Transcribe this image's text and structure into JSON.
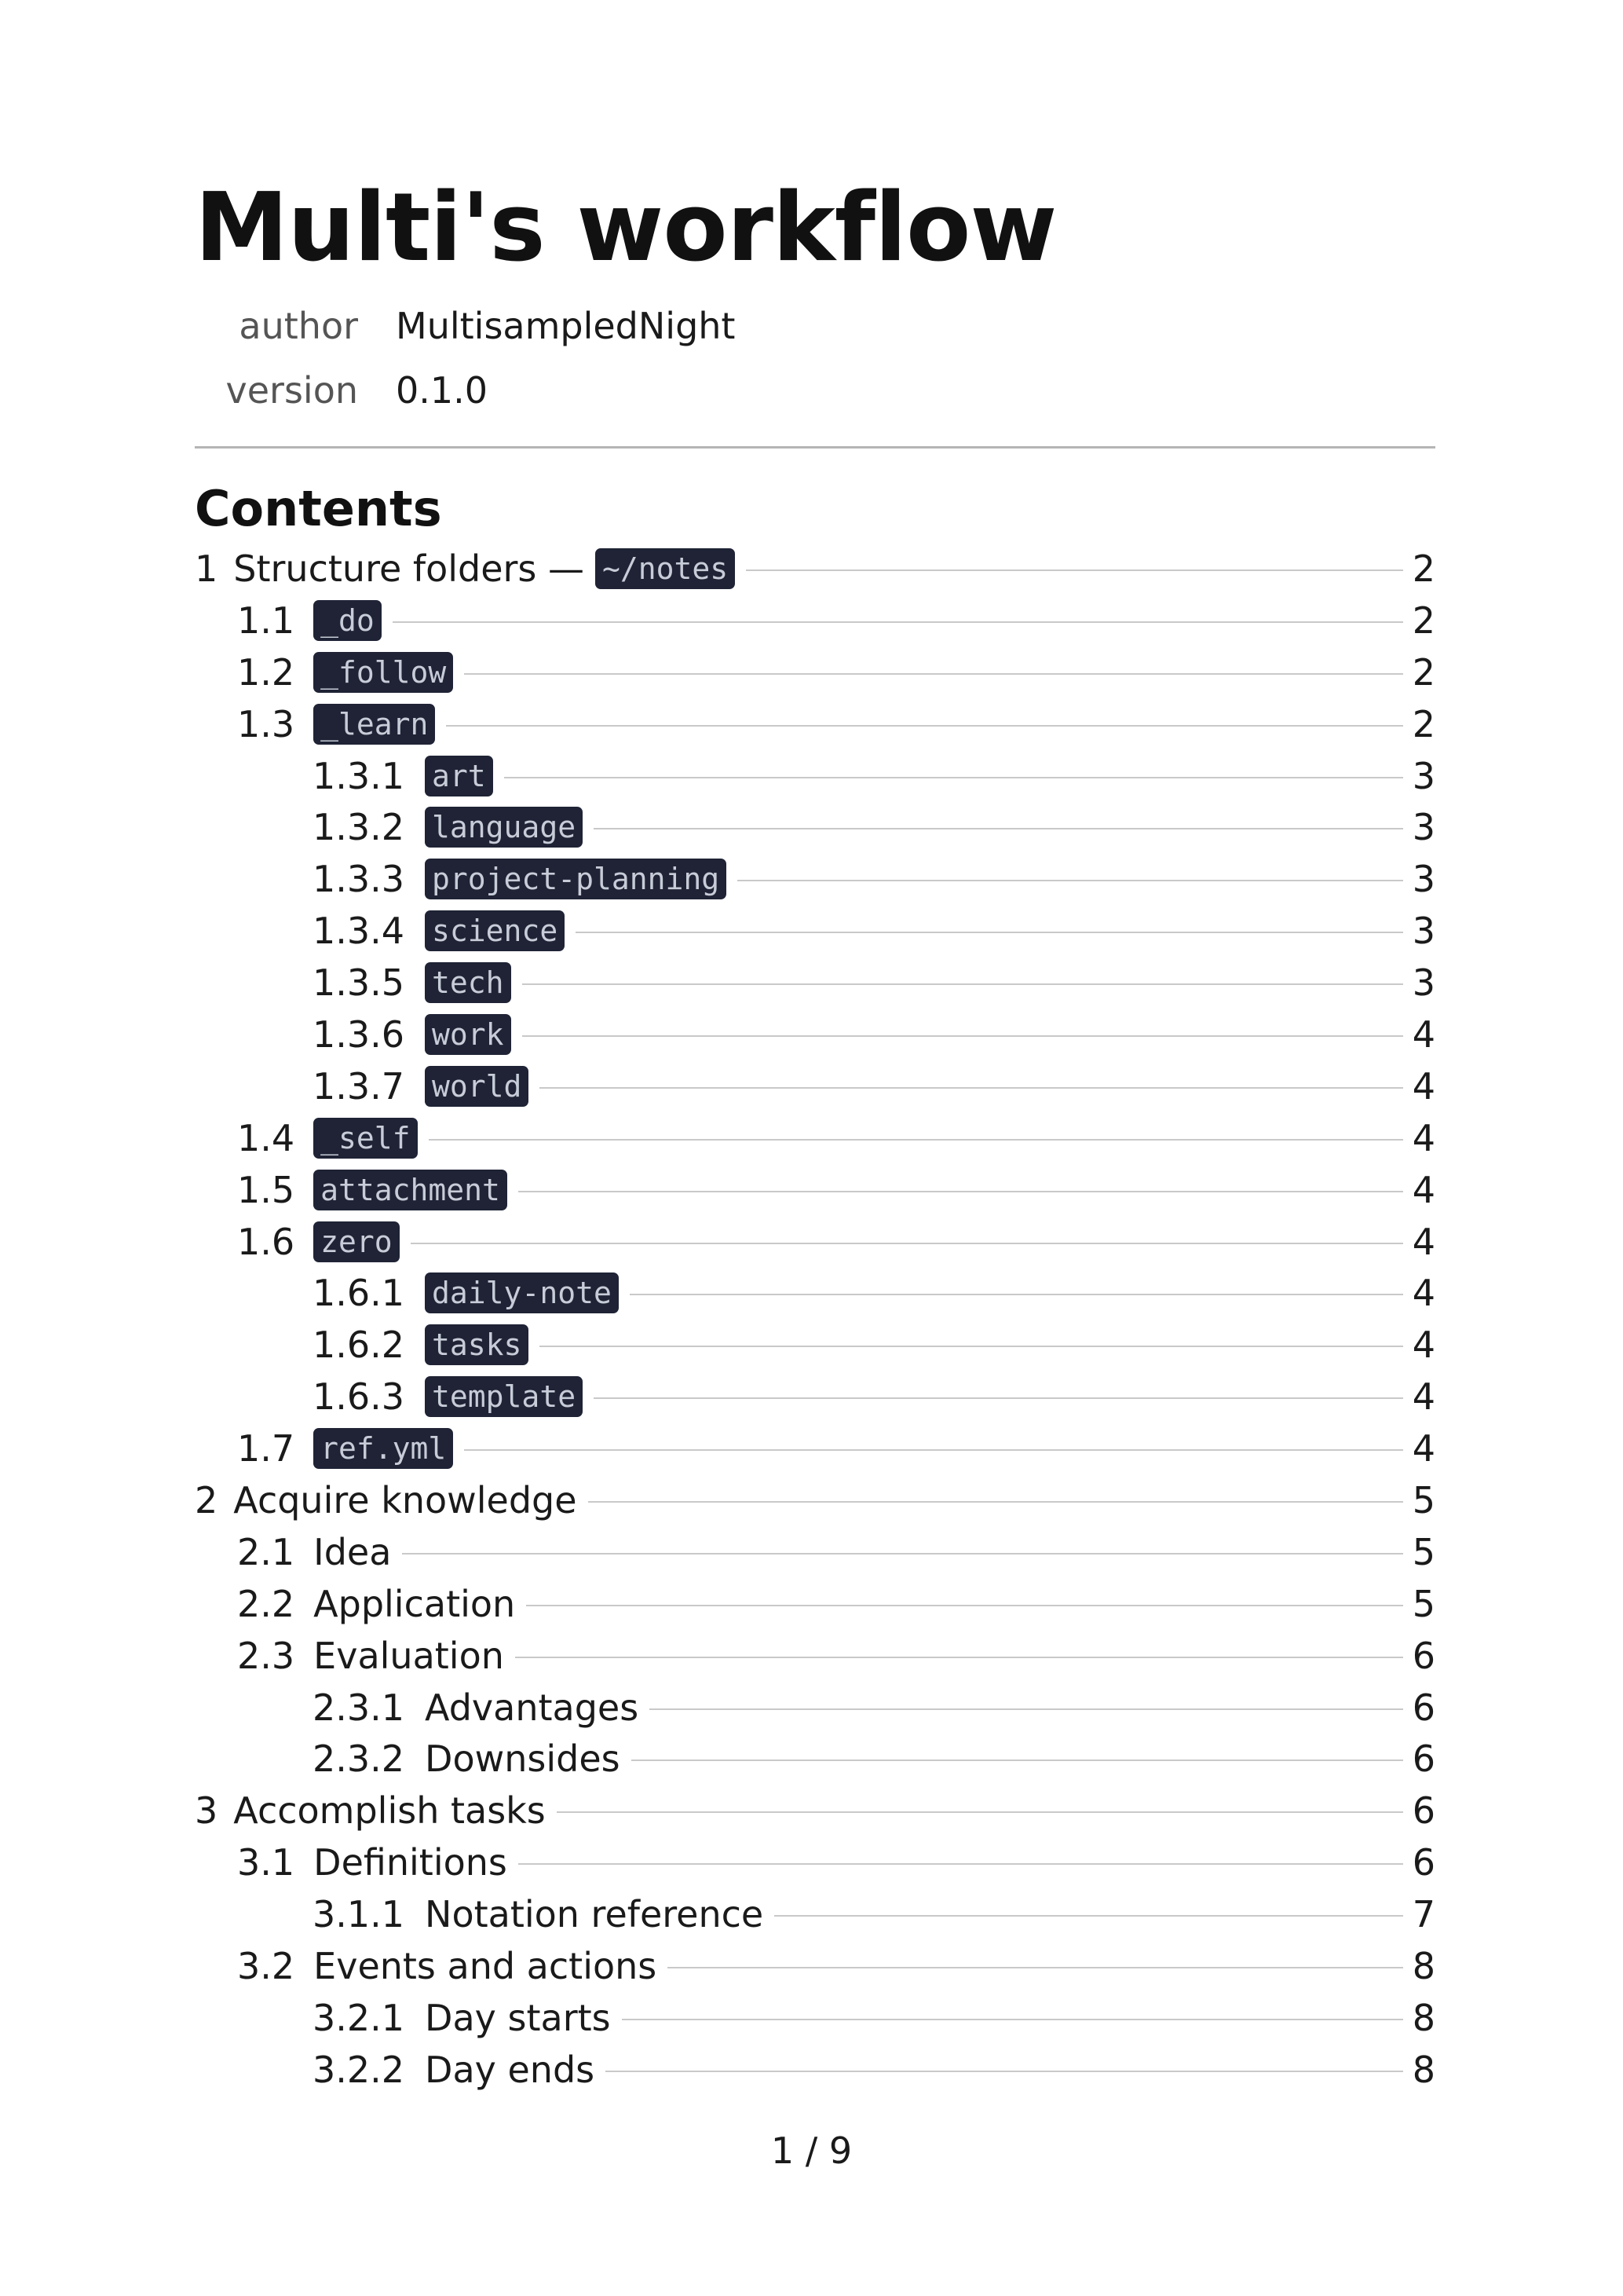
{
  "document": {
    "title": "Multi's workflow",
    "meta": [
      {
        "key": "author",
        "value": "MultisampledNight"
      },
      {
        "key": "version",
        "value": "0.1.0"
      }
    ]
  },
  "contents": {
    "heading": "Contents",
    "entries": [
      {
        "level": 1,
        "number": "1",
        "title": "Structure folders",
        "separator": "—",
        "code": "~/notes",
        "page": "2"
      },
      {
        "level": 2,
        "number": "1.1",
        "title": "",
        "code": "_do",
        "page": "2"
      },
      {
        "level": 2,
        "number": "1.2",
        "title": "",
        "code": "_follow",
        "page": "2"
      },
      {
        "level": 2,
        "number": "1.3",
        "title": "",
        "code": "_learn",
        "page": "2"
      },
      {
        "level": 3,
        "number": "1.3.1",
        "title": "",
        "code": "art",
        "page": "3"
      },
      {
        "level": 3,
        "number": "1.3.2",
        "title": "",
        "code": "language",
        "page": "3"
      },
      {
        "level": 3,
        "number": "1.3.3",
        "title": "",
        "code": "project-planning",
        "page": "3"
      },
      {
        "level": 3,
        "number": "1.3.4",
        "title": "",
        "code": "science",
        "page": "3"
      },
      {
        "level": 3,
        "number": "1.3.5",
        "title": "",
        "code": "tech",
        "page": "3"
      },
      {
        "level": 3,
        "number": "1.3.6",
        "title": "",
        "code": "work",
        "page": "4"
      },
      {
        "level": 3,
        "number": "1.3.7",
        "title": "",
        "code": "world",
        "page": "4"
      },
      {
        "level": 2,
        "number": "1.4",
        "title": "",
        "code": "_self",
        "page": "4"
      },
      {
        "level": 2,
        "number": "1.5",
        "title": "",
        "code": "attachment",
        "page": "4"
      },
      {
        "level": 2,
        "number": "1.6",
        "title": "",
        "code": "zero",
        "page": "4"
      },
      {
        "level": 3,
        "number": "1.6.1",
        "title": "",
        "code": "daily-note",
        "page": "4"
      },
      {
        "level": 3,
        "number": "1.6.2",
        "title": "",
        "code": "tasks",
        "page": "4"
      },
      {
        "level": 3,
        "number": "1.6.3",
        "title": "",
        "code": "template",
        "page": "4"
      },
      {
        "level": 2,
        "number": "1.7",
        "title": "",
        "code": "ref.yml",
        "page": "4"
      },
      {
        "level": 1,
        "number": "2",
        "title": "Acquire knowledge",
        "code": "",
        "page": "5"
      },
      {
        "level": 2,
        "number": "2.1",
        "title": "Idea",
        "code": "",
        "page": "5"
      },
      {
        "level": 2,
        "number": "2.2",
        "title": "Application",
        "code": "",
        "page": "5"
      },
      {
        "level": 2,
        "number": "2.3",
        "title": "Evaluation",
        "code": "",
        "page": "6"
      },
      {
        "level": 3,
        "number": "2.3.1",
        "title": "Advantages",
        "code": "",
        "page": "6"
      },
      {
        "level": 3,
        "number": "2.3.2",
        "title": "Downsides",
        "code": "",
        "page": "6"
      },
      {
        "level": 1,
        "number": "3",
        "title": "Accomplish tasks",
        "code": "",
        "page": "6"
      },
      {
        "level": 2,
        "number": "3.1",
        "title": "Definitions",
        "code": "",
        "page": "6"
      },
      {
        "level": 3,
        "number": "3.1.1",
        "title": "Notation reference",
        "code": "",
        "page": "7"
      },
      {
        "level": 2,
        "number": "3.2",
        "title": "Events and actions",
        "code": "",
        "page": "8"
      },
      {
        "level": 3,
        "number": "3.2.1",
        "title": "Day starts",
        "code": "",
        "page": "8"
      },
      {
        "level": 3,
        "number": "3.2.2",
        "title": "Day ends",
        "code": "",
        "page": "8"
      }
    ]
  },
  "footer": {
    "page_indicator": "1 / 9"
  },
  "colors": {
    "code_background": "#1f2335",
    "code_text": "#c7ccd8",
    "leader_line": "#c9c9c9",
    "rule": "#b5b5b5"
  }
}
